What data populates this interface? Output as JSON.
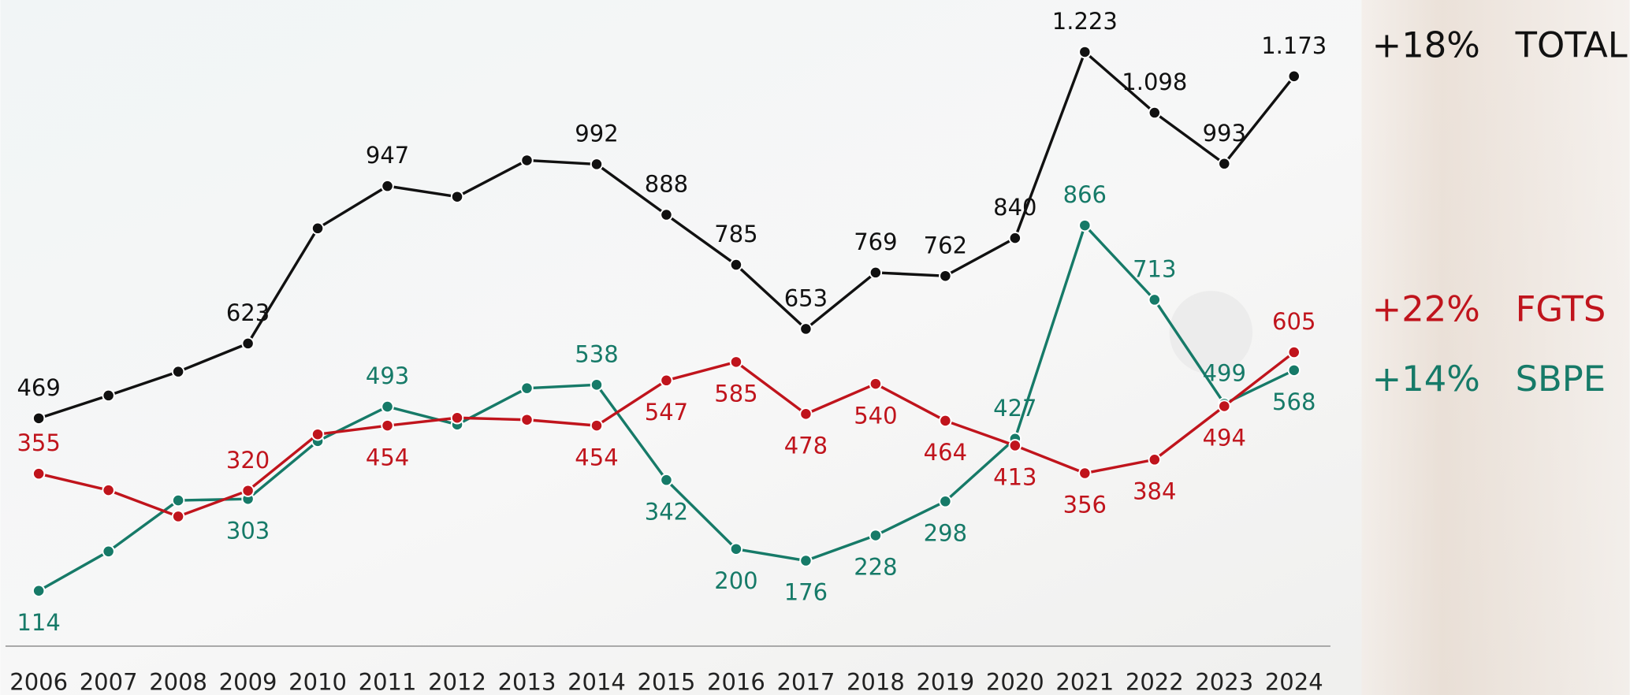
{
  "chart_data": {
    "type": "line",
    "categories": [
      "2006",
      "2007",
      "2008",
      "2009",
      "2010",
      "2011",
      "2012",
      "2013",
      "2014",
      "2015",
      "2016",
      "2017",
      "2018",
      "2019",
      "2020",
      "2021",
      "2022",
      "2023",
      "2024"
    ],
    "ylim": [
      0,
      1330
    ],
    "series": [
      {
        "name": "TOTAL",
        "change": "+18%",
        "color": "#111111",
        "values": [
          469,
          516,
          565,
          623,
          860,
          947,
          925,
          1000,
          992,
          888,
          785,
          653,
          769,
          762,
          840,
          1223,
          1098,
          993,
          1173
        ],
        "value_labels": [
          "469",
          null,
          null,
          "623",
          null,
          "947",
          null,
          null,
          "992",
          "888",
          "785",
          "653",
          "769",
          "762",
          "840",
          "1.223",
          "1.098",
          "993",
          "1.173"
        ]
      },
      {
        "name": "FGTS",
        "change": "+22%",
        "color": "#c0141c",
        "values": [
          355,
          321,
          267,
          320,
          436,
          454,
          470,
          466,
          454,
          547,
          585,
          478,
          540,
          464,
          413,
          356,
          384,
          494,
          605
        ],
        "value_labels": [
          "355",
          null,
          null,
          "320",
          null,
          "454",
          null,
          null,
          "454",
          "547",
          "585",
          "478",
          "540",
          "464",
          "413",
          "356",
          "384",
          "494",
          "605"
        ]
      },
      {
        "name": "SBPE",
        "change": "+14%",
        "color": "#167a68",
        "values": [
          114,
          195,
          300,
          303,
          422,
          493,
          456,
          531,
          538,
          342,
          200,
          176,
          228,
          298,
          427,
          866,
          713,
          499,
          568
        ],
        "value_labels": [
          "114",
          null,
          null,
          "303",
          null,
          "493",
          null,
          null,
          "538",
          "342",
          "200",
          "176",
          "228",
          "298",
          "427",
          "866",
          "713",
          "499",
          "568"
        ]
      }
    ]
  }
}
